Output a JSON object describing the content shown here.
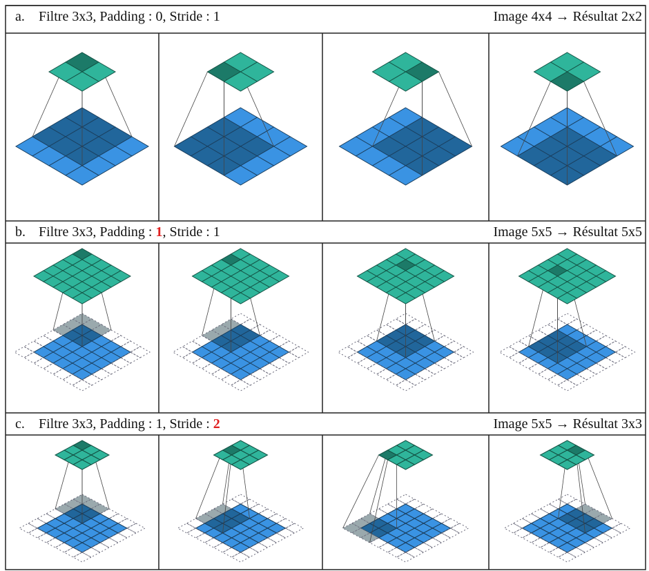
{
  "rows": [
    {
      "label": "a.",
      "title": [
        "Filtre 3x3, Padding : 0, Stride : 1"
      ],
      "result": "Image 4x4  → Résultat 2x2"
    },
    {
      "label": "b.",
      "title": [
        "Filtre 3x3, Padding : ",
        "1",
        ", Stride : 1"
      ],
      "result": "Image 5x5  → Résultat 5x5"
    },
    {
      "label": "c.",
      "title": [
        "Filtre 3x3, Padding : 1, Stride : ",
        "2"
      ],
      "result": "Image 5x5  → Résultat 3x3"
    }
  ]
}
